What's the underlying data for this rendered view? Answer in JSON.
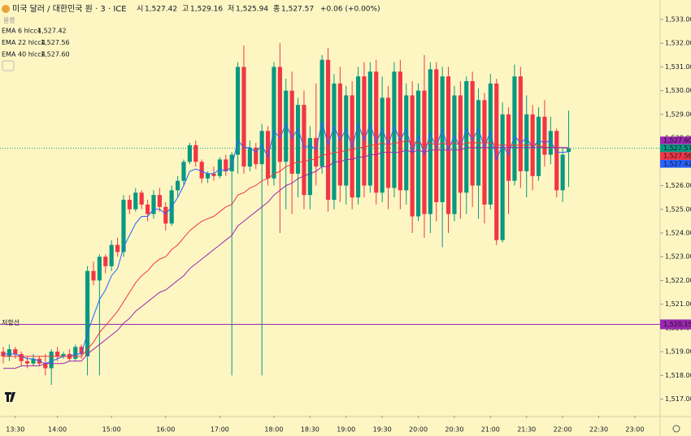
{
  "header": {
    "title": "미국 달러 / 대한민국 원 · 3 · ICE",
    "volume": "볼륨",
    "ohlc": [
      {
        "key": "시",
        "value": "1,527.42"
      },
      {
        "key": "고",
        "value": "1,529.16"
      },
      {
        "key": "저",
        "value": "1,525.94"
      },
      {
        "key": "종",
        "value": "1,527.57"
      }
    ],
    "change": "+0.06 (+0.00%)"
  },
  "chart_data": {
    "type": "candlestick",
    "up_color": "#089981",
    "down_color": "#f23645",
    "open": [
      1519.0,
      1518.8,
      1519.1,
      1518.9,
      1518.6,
      1518.5,
      1518.7,
      1518.5,
      1518.3,
      1519.0,
      1518.8,
      1518.9,
      1518.7,
      1519.2,
      1518.8,
      1522.4,
      1522.0,
      1523.0,
      1522.6,
      1523.5,
      1523.2,
      1525.4,
      1525.0,
      1525.7,
      1525.2,
      1524.8,
      1525.6,
      1525.1,
      1524.4,
      1525.8,
      1526.2,
      1527.0,
      1527.7,
      1527.0,
      1526.3,
      1526.5,
      1526.4,
      1527.1,
      1526.6,
      1527.3,
      1531.0,
      1526.8,
      1527.6,
      1526.9,
      1528.3,
      1526.3,
      1531.0,
      1527.0,
      1530.0,
      1526.5,
      1529.4,
      1525.6,
      1528.0,
      1526.8,
      1531.3,
      1525.4,
      1530.3,
      1526.0,
      1529.8,
      1525.5,
      1530.6,
      1526.0,
      1530.8,
      1525.7,
      1529.7,
      1525.9,
      1530.8,
      1525.8,
      1529.8,
      1524.7,
      1530.0,
      1524.8,
      1530.9,
      1525.3,
      1530.6,
      1524.8,
      1529.8,
      1525.7,
      1530.4,
      1526.0,
      1529.6,
      1525.2,
      1530.3,
      1523.7,
      1529.0,
      1526.2,
      1530.6,
      1526.6,
      1529.0,
      1526.4,
      1528.9,
      1527.3,
      1528.3,
      1525.8,
      1527.42
    ],
    "high": [
      1519.2,
      1519.3,
      1519.2,
      1519.0,
      1518.8,
      1518.9,
      1518.8,
      1518.9,
      1519.1,
      1519.2,
      1519.0,
      1519.1,
      1519.3,
      1519.3,
      1522.6,
      1522.8,
      1523.1,
      1523.1,
      1523.7,
      1523.8,
      1525.6,
      1525.6,
      1525.9,
      1525.8,
      1525.4,
      1525.8,
      1525.9,
      1525.3,
      1526.0,
      1526.4,
      1527.1,
      1527.8,
      1527.9,
      1527.1,
      1526.6,
      1526.8,
      1527.2,
      1527.3,
      1527.4,
      1531.2,
      1531.9,
      1527.9,
      1527.8,
      1528.6,
      1528.5,
      1531.2,
      1532.0,
      1530.5,
      1530.8,
      1529.7,
      1530.0,
      1528.5,
      1530.3,
      1531.5,
      1531.8,
      1530.7,
      1531.0,
      1530.2,
      1530.4,
      1531.0,
      1531.2,
      1531.2,
      1531.3,
      1530.6,
      1530.2,
      1531.2,
      1531.3,
      1530.3,
      1530.4,
      1530.3,
      1531.5,
      1531.2,
      1531.2,
      1531.0,
      1531.0,
      1530.2,
      1530.4,
      1530.6,
      1530.8,
      1530.1,
      1529.9,
      1530.7,
      1530.5,
      1529.5,
      1529.3,
      1531.1,
      1531.0,
      1529.8,
      1529.4,
      1529.3,
      1529.6,
      1528.9,
      1528.4,
      1527.6,
      1529.16
    ],
    "low": [
      1518.5,
      1518.6,
      1518.7,
      1518.4,
      1518.3,
      1518.4,
      1518.4,
      1518.0,
      1517.6,
      1518.6,
      1518.7,
      1518.6,
      1518.6,
      1518.7,
      1518.0,
      1521.8,
      1518.0,
      1522.3,
      1522.4,
      1523.0,
      1523.0,
      1524.8,
      1524.9,
      1525.0,
      1524.5,
      1524.6,
      1524.9,
      1524.1,
      1524.3,
      1525.5,
      1526.0,
      1526.9,
      1526.8,
      1526.1,
      1526.1,
      1526.2,
      1526.3,
      1526.4,
      1518.0,
      1526.5,
      1526.5,
      1526.6,
      1526.7,
      1518.0,
      1526.0,
      1526.0,
      1524.0,
      1525.0,
      1524.8,
      1525.5,
      1525.0,
      1525.0,
      1526.0,
      1526.5,
      1524.9,
      1525.0,
      1525.3,
      1525.2,
      1525.0,
      1525.2,
      1525.5,
      1525.7,
      1525.2,
      1525.3,
      1525.0,
      1525.5,
      1525.0,
      1525.2,
      1524.0,
      1524.5,
      1523.8,
      1524.0,
      1524.5,
      1523.4,
      1524.0,
      1524.5,
      1524.6,
      1524.8,
      1525.1,
      1524.6,
      1524.4,
      1525.0,
      1523.5,
      1523.6,
      1524.8,
      1526.0,
      1525.9,
      1525.5,
      1525.8,
      1526.2,
      1526.8,
      1526.9,
      1525.5,
      1525.3,
      1525.94
    ],
    "close": [
      1518.8,
      1519.1,
      1518.9,
      1518.6,
      1518.5,
      1518.7,
      1518.5,
      1518.3,
      1519.0,
      1518.8,
      1518.9,
      1518.7,
      1519.2,
      1518.9,
      1522.4,
      1522.0,
      1523.0,
      1522.6,
      1523.5,
      1523.2,
      1525.4,
      1525.0,
      1525.7,
      1525.2,
      1524.8,
      1525.6,
      1525.1,
      1524.4,
      1525.8,
      1526.2,
      1527.0,
      1527.7,
      1527.0,
      1526.3,
      1526.5,
      1526.4,
      1527.1,
      1526.6,
      1527.3,
      1531.0,
      1526.8,
      1527.6,
      1526.9,
      1528.3,
      1526.3,
      1531.0,
      1527.0,
      1530.0,
      1526.5,
      1529.4,
      1525.6,
      1528.0,
      1526.8,
      1531.3,
      1525.4,
      1530.3,
      1526.0,
      1529.8,
      1525.5,
      1530.6,
      1526.0,
      1530.8,
      1525.7,
      1529.7,
      1525.9,
      1530.8,
      1525.8,
      1529.8,
      1524.7,
      1530.0,
      1524.8,
      1530.9,
      1525.3,
      1530.6,
      1524.8,
      1529.8,
      1525.7,
      1530.4,
      1526.0,
      1529.6,
      1525.2,
      1530.3,
      1523.7,
      1529.0,
      1526.2,
      1530.6,
      1526.6,
      1529.0,
      1526.4,
      1528.9,
      1527.3,
      1528.3,
      1525.8,
      1527.3,
      1527.57
    ],
    "last_label": "1,527.57",
    "series": [
      {
        "name": "EMA 6 hlcc4",
        "color": "#2962ff",
        "label": "1,527.42",
        "values": [
          1518.9,
          1518.9,
          1518.9,
          1518.8,
          1518.7,
          1518.7,
          1518.6,
          1518.5,
          1518.6,
          1518.7,
          1518.8,
          1518.8,
          1518.9,
          1518.9,
          1519.8,
          1520.5,
          1521.2,
          1521.6,
          1522.2,
          1522.5,
          1523.4,
          1523.9,
          1524.4,
          1524.7,
          1524.7,
          1525.0,
          1525.0,
          1524.8,
          1525.1,
          1525.5,
          1526.0,
          1526.6,
          1526.7,
          1526.6,
          1526.5,
          1526.5,
          1526.7,
          1526.6,
          1526.8,
          1527.9,
          1527.6,
          1527.6,
          1527.4,
          1527.7,
          1527.2,
          1528.3,
          1528.0,
          1528.6,
          1528.0,
          1528.4,
          1527.6,
          1527.7,
          1527.5,
          1528.7,
          1527.7,
          1528.5,
          1527.9,
          1528.4,
          1527.6,
          1528.6,
          1527.9,
          1528.6,
          1527.8,
          1528.4,
          1527.7,
          1528.5,
          1527.9,
          1528.4,
          1527.4,
          1528.1,
          1527.3,
          1528.2,
          1527.6,
          1528.4,
          1527.5,
          1528.1,
          1527.6,
          1528.4,
          1527.9,
          1528.4,
          1527.6,
          1528.3,
          1527.1,
          1527.7,
          1527.3,
          1528.1,
          1527.8,
          1528.0,
          1527.6,
          1527.9,
          1527.8,
          1527.9,
          1527.4,
          1527.4,
          1527.42
        ]
      },
      {
        "name": "EMA 22 hlcc4",
        "color": "#f23645",
        "label": "1,527.56",
        "values": [
          1518.8,
          1518.8,
          1518.8,
          1518.8,
          1518.8,
          1518.8,
          1518.8,
          1518.8,
          1518.8,
          1518.8,
          1518.8,
          1518.8,
          1518.8,
          1518.8,
          1519.1,
          1519.4,
          1519.8,
          1520.1,
          1520.4,
          1520.7,
          1521.1,
          1521.5,
          1521.9,
          1522.2,
          1522.4,
          1522.7,
          1522.9,
          1523.0,
          1523.3,
          1523.5,
          1523.8,
          1524.1,
          1524.3,
          1524.5,
          1524.6,
          1524.7,
          1524.9,
          1525.1,
          1525.2,
          1525.6,
          1525.7,
          1525.9,
          1526.0,
          1526.2,
          1526.3,
          1526.5,
          1526.6,
          1526.8,
          1526.9,
          1527.0,
          1527.0,
          1527.1,
          1527.1,
          1527.3,
          1527.3,
          1527.4,
          1527.4,
          1527.5,
          1527.5,
          1527.6,
          1527.6,
          1527.7,
          1527.7,
          1527.8,
          1527.7,
          1527.8,
          1527.8,
          1527.9,
          1527.8,
          1527.8,
          1527.7,
          1527.8,
          1527.7,
          1527.8,
          1527.7,
          1527.8,
          1527.7,
          1527.8,
          1527.8,
          1527.8,
          1527.8,
          1527.8,
          1527.7,
          1527.7,
          1527.7,
          1527.7,
          1527.7,
          1527.7,
          1527.7,
          1527.7,
          1527.6,
          1527.6,
          1527.6,
          1527.6,
          1527.56
        ]
      },
      {
        "name": "EMA 40 hlcc4",
        "color": "#9c27b0",
        "label": "1,527.60",
        "values": [
          1518.3,
          1518.3,
          1518.3,
          1518.4,
          1518.4,
          1518.4,
          1518.4,
          1518.5,
          1518.5,
          1518.5,
          1518.5,
          1518.6,
          1518.6,
          1518.6,
          1518.9,
          1519.1,
          1519.3,
          1519.5,
          1519.7,
          1519.9,
          1520.2,
          1520.4,
          1520.7,
          1520.9,
          1521.1,
          1521.3,
          1521.5,
          1521.6,
          1521.8,
          1522.0,
          1522.2,
          1522.5,
          1522.7,
          1522.9,
          1523.1,
          1523.3,
          1523.5,
          1523.7,
          1523.9,
          1524.3,
          1524.5,
          1524.7,
          1524.9,
          1525.1,
          1525.3,
          1525.6,
          1525.8,
          1526.0,
          1526.1,
          1526.3,
          1526.4,
          1526.5,
          1526.6,
          1526.8,
          1526.8,
          1527.0,
          1527.0,
          1527.1,
          1527.1,
          1527.2,
          1527.2,
          1527.3,
          1527.3,
          1527.4,
          1527.4,
          1527.4,
          1527.4,
          1527.5,
          1527.4,
          1527.5,
          1527.4,
          1527.5,
          1527.5,
          1527.5,
          1527.5,
          1527.5,
          1527.5,
          1527.6,
          1527.6,
          1527.6,
          1527.6,
          1527.6,
          1527.6,
          1527.6,
          1527.6,
          1527.6,
          1527.6,
          1527.6,
          1527.6,
          1527.6,
          1527.6,
          1527.6,
          1527.6,
          1527.6,
          1527.6
        ]
      }
    ],
    "levels": [
      {
        "name": "저항선",
        "value": 1520.15,
        "label": "1,520.15",
        "color": "#9c27b0"
      }
    ],
    "xlim": [
      -0.54,
      109.2
    ],
    "xticks": [
      {
        "value": 2,
        "label": "13:30"
      },
      {
        "value": 9,
        "label": "14:00"
      },
      {
        "value": 18,
        "label": "15:00"
      },
      {
        "value": 27,
        "label": "16:00"
      },
      {
        "value": 36,
        "label": "17:00"
      },
      {
        "value": 45,
        "label": "18:00"
      },
      {
        "value": 51,
        "label": "18:30"
      },
      {
        "value": 57,
        "label": "19:00"
      },
      {
        "value": 63,
        "label": "19:30"
      },
      {
        "value": 69,
        "label": "20:00"
      },
      {
        "value": 75,
        "label": "20:30"
      },
      {
        "value": 81,
        "label": "21:00"
      },
      {
        "value": 87,
        "label": "21:30"
      },
      {
        "value": 93,
        "label": "22:00"
      },
      {
        "value": 99,
        "label": "22:30"
      },
      {
        "value": 105,
        "label": "23:00"
      }
    ],
    "ylim": [
      1516.3,
      1533.82
    ],
    "yticks": [
      {
        "value": 1517,
        "label": "1,517.00"
      },
      {
        "value": 1518,
        "label": "1,518.00"
      },
      {
        "value": 1519,
        "label": "1,519.00"
      },
      {
        "value": 1520,
        "label": "1,520.00"
      },
      {
        "value": 1521,
        "label": "1,521.00"
      },
      {
        "value": 1522,
        "label": "1,522.00"
      },
      {
        "value": 1523,
        "label": "1,523.00"
      },
      {
        "value": 1524,
        "label": "1,524.00"
      },
      {
        "value": 1525,
        "label": "1,525.00"
      },
      {
        "value": 1526,
        "label": "1,526.00"
      },
      {
        "value": 1527,
        "label": "1,527.00"
      },
      {
        "value": 1528,
        "label": "1,528.00"
      },
      {
        "value": 1529,
        "label": "1,529.00"
      },
      {
        "value": 1530,
        "label": "1,530.00"
      },
      {
        "value": 1531,
        "label": "1,531.00"
      },
      {
        "value": 1532,
        "label": "1,532.00"
      },
      {
        "value": 1533,
        "label": "1,533.00"
      }
    ]
  }
}
